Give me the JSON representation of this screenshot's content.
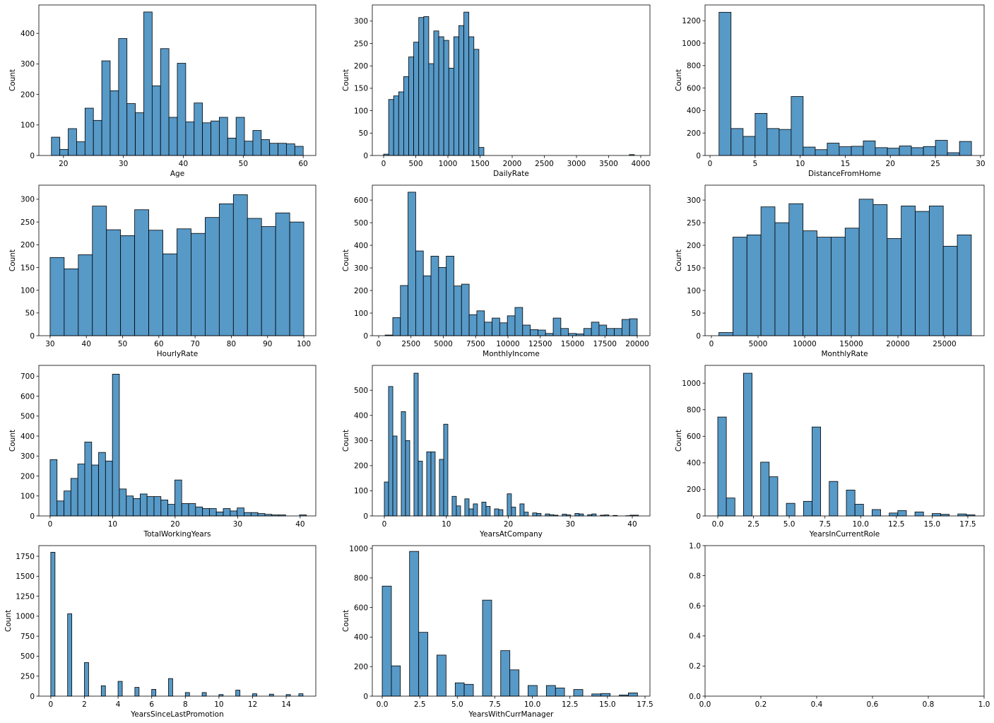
{
  "chart_data": [
    {
      "type": "histogram",
      "xlabel": "Age",
      "ylabel": "Count",
      "color": "#5799c7",
      "bins": [
        18,
        19.4,
        20.8,
        22.2,
        23.6,
        25,
        26.4,
        27.8,
        29.2,
        30.6,
        32,
        33.4,
        34.8,
        36.2,
        37.6,
        39,
        40.4,
        41.8,
        43.2,
        44.6,
        46,
        47.4,
        48.8,
        50.2,
        51.6,
        53,
        54.4,
        55.8,
        57.2,
        58.6,
        60
      ],
      "values": [
        60,
        20,
        88,
        45,
        155,
        115,
        310,
        212,
        383,
        170,
        140,
        470,
        228,
        350,
        125,
        302,
        110,
        172,
        107,
        113,
        125,
        57,
        125,
        47,
        82,
        52,
        40,
        40,
        38,
        30
      ],
      "xlim": [
        15.9,
        62.1
      ],
      "xticks": [
        20,
        30,
        40,
        50,
        60
      ],
      "ylim": [
        0,
        493
      ],
      "yticks": [
        0,
        100,
        200,
        300,
        400
      ]
    },
    {
      "type": "histogram",
      "xlabel": "DailyRate",
      "ylabel": "Count",
      "color": "#5799c7",
      "bins": [
        0,
        78,
        156,
        234,
        312,
        390,
        468,
        546,
        624,
        702,
        780,
        858,
        936,
        1014,
        1092,
        1170,
        1248,
        1326,
        1404,
        1482,
        1560,
        1638,
        1716,
        1794,
        1872,
        1950,
        2028,
        2106,
        2184,
        2262,
        2340,
        2418,
        2496,
        2574,
        2652,
        2730,
        2808,
        2886,
        2964,
        3042,
        3120,
        3198,
        3276,
        3354,
        3432,
        3510,
        3588,
        3666,
        3744,
        3822,
        3900
      ],
      "values": [
        3,
        125,
        133,
        142,
        176,
        220,
        253,
        308,
        310,
        205,
        278,
        265,
        257,
        195,
        265,
        290,
        320,
        265,
        237,
        18,
        0,
        0,
        0,
        0,
        0,
        0,
        0,
        0,
        0,
        0,
        0,
        0,
        0,
        0,
        0,
        0,
        0,
        0,
        0,
        0,
        0,
        0,
        0,
        0,
        0,
        0,
        0,
        0,
        0,
        2
      ],
      "xlim": [
        -176,
        4143
      ],
      "xticks": [
        0,
        500,
        1000,
        1500,
        2000,
        2500,
        3000,
        3500,
        4000
      ],
      "ylim": [
        0,
        336
      ],
      "yticks": [
        0,
        50,
        100,
        150,
        200,
        250,
        300
      ]
    },
    {
      "type": "histogram",
      "xlabel": "DistanceFromHome",
      "ylabel": "Count",
      "color": "#5799c7",
      "bins": [
        1,
        2.33,
        3.67,
        5,
        6.33,
        7.67,
        9,
        10.33,
        11.67,
        13,
        14.33,
        15.67,
        17,
        18.33,
        19.67,
        21,
        22.33,
        23.67,
        25,
        26.33,
        27.67,
        29
      ],
      "values": [
        1275,
        240,
        170,
        375,
        240,
        232,
        525,
        75,
        52,
        110,
        78,
        82,
        130,
        70,
        65,
        85,
        70,
        80,
        135,
        25,
        125
      ],
      "xlim": [
        -0.55,
        30.4
      ],
      "xticks": [
        0,
        5,
        10,
        15,
        20,
        25,
        30
      ],
      "ylim": [
        0,
        1340
      ],
      "yticks": [
        0,
        200,
        400,
        600,
        800,
        1000,
        1200
      ]
    },
    {
      "type": "histogram",
      "xlabel": "HourlyRate",
      "ylabel": "Count",
      "color": "#5799c7",
      "bins": [
        30,
        33.89,
        37.78,
        41.67,
        45.56,
        49.44,
        53.33,
        57.22,
        61.11,
        65,
        68.89,
        72.78,
        76.67,
        80.56,
        84.44,
        88.33,
        92.22,
        96.11,
        100
      ],
      "values": [
        172,
        147,
        178,
        285,
        233,
        220,
        277,
        232,
        180,
        235,
        225,
        260,
        290,
        310,
        258,
        240,
        270,
        250
      ],
      "xlim": [
        26.9,
        103.3
      ],
      "xticks": [
        30,
        40,
        50,
        60,
        70,
        80,
        90,
        100
      ],
      "ylim": [
        0,
        331
      ],
      "yticks": [
        0,
        50,
        100,
        150,
        200,
        250,
        300
      ]
    },
    {
      "type": "histogram",
      "xlabel": "MonthlyIncome",
      "ylabel": "Count",
      "color": "#5799c7",
      "bins": [
        500,
        1091,
        1682,
        2273,
        2864,
        3455,
        4045,
        4636,
        5227,
        5818,
        6409,
        7000,
        7591,
        8182,
        8773,
        9364,
        9955,
        10545,
        11136,
        11727,
        12318,
        12909,
        13500,
        14091,
        14682,
        15273,
        15864,
        16455,
        17045,
        17636,
        18227,
        18818,
        19409,
        20000
      ],
      "values": [
        3,
        80,
        222,
        635,
        375,
        265,
        352,
        302,
        352,
        220,
        228,
        93,
        110,
        60,
        78,
        57,
        88,
        125,
        47,
        27,
        25,
        10,
        78,
        32,
        10,
        8,
        32,
        60,
        47,
        32,
        32,
        72,
        75
      ],
      "xlim": [
        -492,
        20984
      ],
      "xticks": [
        0,
        2500,
        5000,
        7500,
        10000,
        12500,
        15000,
        17500,
        20000
      ],
      "ylim": [
        0,
        666
      ],
      "yticks": [
        0,
        100,
        200,
        300,
        400,
        500,
        600
      ]
    },
    {
      "type": "histogram",
      "xlabel": "MonthlyRate",
      "ylabel": "Count",
      "color": "#5799c7",
      "bins": [
        800,
        2304,
        3808,
        5312,
        6816,
        8320,
        9824,
        11328,
        12832,
        14336,
        15840,
        17344,
        18848,
        20352,
        21856,
        23360,
        24864,
        26368,
        27872
      ],
      "values": [
        7,
        218,
        223,
        285,
        250,
        292,
        232,
        218,
        218,
        238,
        302,
        290,
        215,
        287,
        275,
        287,
        198,
        223
      ],
      "xlim": [
        -682,
        29242
      ],
      "xticks": [
        0,
        5000,
        10000,
        15000,
        20000,
        25000
      ],
      "ylim": [
        0,
        333
      ],
      "yticks": [
        0,
        50,
        100,
        150,
        200,
        250,
        300
      ]
    },
    {
      "type": "histogram",
      "xlabel": "TotalWorkingYears",
      "ylabel": "Count",
      "color": "#5799c7",
      "bins": [
        0,
        1.11,
        2.22,
        3.32,
        4.43,
        5.54,
        6.65,
        7.76,
        8.86,
        9.97,
        11.08,
        12.19,
        13.3,
        14.41,
        15.51,
        16.62,
        17.73,
        18.84,
        19.95,
        21.05,
        22.16,
        23.27,
        24.38,
        25.49,
        26.59,
        27.7,
        28.81,
        29.92,
        31.03,
        32.14,
        33.24,
        34.35,
        35.46,
        36.57,
        37.68,
        38.78,
        39.89,
        41
      ],
      "values": [
        282,
        75,
        125,
        188,
        260,
        370,
        255,
        318,
        275,
        710,
        135,
        100,
        87,
        110,
        97,
        97,
        80,
        58,
        180,
        62,
        62,
        45,
        37,
        37,
        20,
        37,
        25,
        40,
        17,
        17,
        12,
        8,
        5,
        5,
        0,
        0,
        5
      ],
      "xlim": [
        -1.8,
        42.5
      ],
      "xticks": [
        0,
        10,
        20,
        30,
        40
      ],
      "ylim": [
        0,
        754
      ],
      "yticks": [
        0,
        100,
        200,
        300,
        400,
        500,
        600,
        700
      ]
    },
    {
      "type": "histogram",
      "xlabel": "YearsAtCompany",
      "ylabel": "Count",
      "color": "#5799c7",
      "bins": [
        0,
        0.68,
        1.37,
        2.05,
        2.73,
        3.42,
        4.1,
        4.78,
        5.47,
        6.15,
        6.83,
        7.52,
        8.2,
        8.88,
        9.57,
        10.25,
        10.93,
        11.62,
        12.3,
        12.98,
        13.67,
        14.35,
        15.03,
        15.72,
        16.4,
        17.08,
        17.77,
        18.45,
        19.13,
        19.82,
        20.5,
        21.18,
        21.87,
        22.55,
        23.23,
        23.92,
        24.6,
        25.28,
        25.97,
        26.65,
        27.33,
        28.02,
        28.7,
        29.38,
        30.07,
        30.75,
        31.43,
        32.12,
        32.8,
        33.48,
        34.17,
        34.85,
        35.53,
        36.22,
        36.9,
        37.58,
        38.27,
        38.95,
        39.63,
        40.32,
        41
      ],
      "values": [
        135,
        515,
        318,
        0,
        415,
        300,
        0,
        568,
        218,
        0,
        255,
        255,
        0,
        225,
        365,
        0,
        78,
        40,
        0,
        68,
        28,
        48,
        0,
        55,
        38,
        0,
        28,
        25,
        0,
        88,
        35,
        0,
        48,
        15,
        0,
        12,
        10,
        0,
        8,
        5,
        3,
        0,
        7,
        4,
        0,
        10,
        8,
        0,
        5,
        8,
        0,
        3,
        4,
        0,
        2,
        0,
        0,
        1,
        3,
        3
      ],
      "xlim": [
        -1.94,
        42.85
      ],
      "xticks": [
        0,
        10,
        20,
        30,
        40
      ],
      "ylim": [
        0,
        599
      ],
      "yticks": [
        0,
        100,
        200,
        300,
        400,
        500
      ]
    },
    {
      "type": "histogram",
      "xlabel": "YearsInCurrentRole",
      "ylabel": "Count",
      "color": "#5799c7",
      "bins": [
        0,
        0.6,
        1.2,
        1.8,
        2.4,
        3,
        3.6,
        4.2,
        4.8,
        5.4,
        6,
        6.6,
        7.2,
        7.8,
        8.4,
        9,
        9.6,
        10.2,
        10.8,
        11.4,
        12,
        12.6,
        13.2,
        13.8,
        14.4,
        15,
        15.6,
        16.2,
        16.8,
        17.4,
        18
      ],
      "values": [
        745,
        135,
        0,
        1075,
        0,
        405,
        295,
        0,
        95,
        0,
        110,
        670,
        0,
        260,
        0,
        195,
        88,
        0,
        48,
        0,
        22,
        40,
        0,
        30,
        0,
        18,
        12,
        0,
        15,
        8
      ],
      "xlim": [
        -0.89,
        18.64
      ],
      "xticks": [
        {
          "value": 0,
          "label": "0.0"
        },
        {
          "value": 2.5,
          "label": "2.5"
        },
        {
          "value": 5,
          "label": "5.0"
        },
        {
          "value": 7.5,
          "label": "7.5"
        },
        {
          "value": 10,
          "label": "10.0"
        },
        {
          "value": 12.5,
          "label": "12.5"
        },
        {
          "value": 15,
          "label": "15.0"
        },
        {
          "value": 17.5,
          "label": "17.5"
        }
      ],
      "ylim": [
        0,
        1134
      ],
      "yticks": [
        0,
        200,
        400,
        600,
        800,
        1000
      ]
    },
    {
      "type": "histogram",
      "xlabel": "YearsSinceLastPromotion",
      "ylabel": "Count",
      "color": "#5799c7",
      "bins": [
        0,
        0.25,
        0.5,
        0.75,
        1,
        1.25,
        1.5,
        1.75,
        2,
        2.25,
        2.5,
        2.75,
        3,
        3.25,
        3.5,
        3.75,
        4,
        4.25,
        4.5,
        4.75,
        5,
        5.25,
        5.5,
        5.75,
        6,
        6.25,
        6.5,
        6.75,
        7,
        7.25,
        7.5,
        7.75,
        8,
        8.25,
        8.5,
        8.75,
        9,
        9.25,
        9.5,
        9.75,
        10,
        10.25,
        10.5,
        10.75,
        11,
        11.25,
        11.5,
        11.75,
        12,
        12.25,
        12.5,
        12.75,
        13,
        13.25,
        13.5,
        13.75,
        14,
        14.25,
        14.5,
        14.75,
        15
      ],
      "values": [
        1800,
        0,
        0,
        0,
        1030,
        0,
        0,
        0,
        420,
        0,
        0,
        0,
        130,
        0,
        0,
        0,
        185,
        0,
        0,
        0,
        110,
        0,
        0,
        0,
        85,
        0,
        0,
        0,
        220,
        0,
        0,
        0,
        45,
        0,
        0,
        0,
        45,
        0,
        0,
        0,
        20,
        0,
        0,
        0,
        75,
        0,
        0,
        0,
        30,
        0,
        0,
        0,
        25,
        0,
        0,
        0,
        20,
        0,
        0,
        30
      ],
      "xlim": [
        -0.71,
        15.76
      ],
      "xticks": [
        0,
        2,
        4,
        6,
        8,
        10,
        12,
        14
      ],
      "ylim": [
        0,
        1883
      ],
      "yticks": [
        0,
        250,
        500,
        750,
        1000,
        1250,
        1500,
        1750
      ]
    },
    {
      "type": "histogram",
      "xlabel": "YearsWithCurrManager",
      "ylabel": "Count",
      "color": "#5799c7",
      "bins": [
        0,
        0.61,
        1.21,
        1.82,
        2.43,
        3.04,
        3.64,
        4.25,
        4.86,
        5.46,
        6.07,
        6.68,
        7.29,
        7.89,
        8.5,
        9.11,
        9.71,
        10.32,
        10.93,
        11.54,
        12.14,
        12.75,
        13.36,
        13.96,
        14.57,
        15.18,
        15.79,
        16.39,
        17
      ],
      "values": [
        745,
        205,
        0,
        980,
        432,
        0,
        278,
        0,
        90,
        80,
        0,
        650,
        0,
        308,
        178,
        0,
        72,
        0,
        72,
        55,
        0,
        45,
        0,
        15,
        18,
        0,
        8,
        22
      ],
      "xlim": [
        -0.66,
        17.83
      ],
      "xticks": [
        {
          "value": 0,
          "label": "0.0"
        },
        {
          "value": 2.5,
          "label": "2.5"
        },
        {
          "value": 5,
          "label": "5.0"
        },
        {
          "value": 7.5,
          "label": "7.5"
        },
        {
          "value": 10,
          "label": "10.0"
        },
        {
          "value": 12.5,
          "label": "12.5"
        },
        {
          "value": 15,
          "label": "15.0"
        },
        {
          "value": 17.5,
          "label": "17.5"
        }
      ],
      "ylim": [
        0,
        1019
      ],
      "yticks": [
        0,
        200,
        400,
        600,
        800,
        1000
      ]
    },
    {
      "type": "empty",
      "xlim": [
        0,
        1
      ],
      "xticks": [
        {
          "value": 0,
          "label": "0.0"
        },
        {
          "value": 0.2,
          "label": "0.2"
        },
        {
          "value": 0.4,
          "label": "0.4"
        },
        {
          "value": 0.6,
          "label": "0.6"
        },
        {
          "value": 0.8,
          "label": "0.8"
        },
        {
          "value": 1,
          "label": "1.0"
        }
      ],
      "ylim": [
        0,
        1
      ],
      "yticks": [
        {
          "value": 0,
          "label": "0.0"
        },
        {
          "value": 0.2,
          "label": "0.2"
        },
        {
          "value": 0.4,
          "label": "0.4"
        },
        {
          "value": 0.6,
          "label": "0.6"
        },
        {
          "value": 0.8,
          "label": "0.8"
        },
        {
          "value": 1,
          "label": "1.0"
        }
      ]
    }
  ]
}
